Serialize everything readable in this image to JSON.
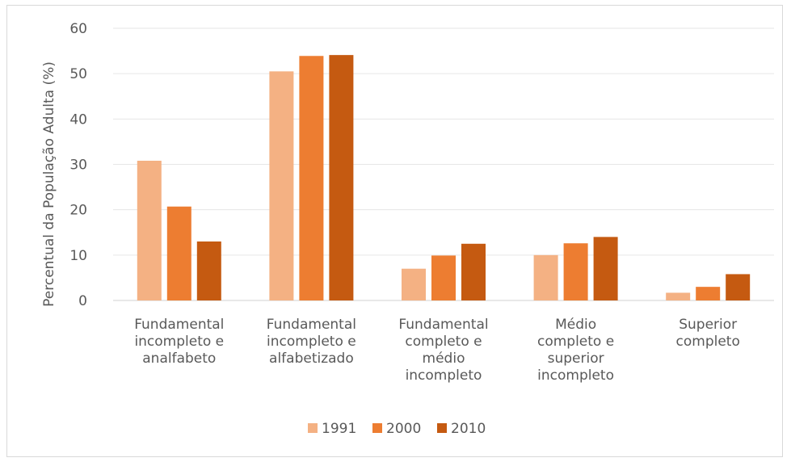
{
  "chart_data": {
    "type": "bar",
    "title": "",
    "xlabel": "",
    "ylabel": "Percentual da População Adulta (%)",
    "ylim": [
      0,
      60
    ],
    "yticks": [
      0,
      10,
      20,
      30,
      40,
      50,
      60
    ],
    "grid": true,
    "legend_position": "bottom",
    "categories": [
      [
        "Fundamental",
        "incompleto e",
        "analfabeto"
      ],
      [
        "Fundamental",
        "incompleto e",
        "alfabetizado"
      ],
      [
        "Fundamental",
        "completo e",
        "médio",
        "incompleto"
      ],
      [
        "Médio",
        "completo e",
        "superior",
        "incompleto"
      ],
      [
        "Superior",
        "completo"
      ]
    ],
    "series": [
      {
        "name": "1991",
        "color": "#f4b183",
        "values": [
          30.8,
          50.5,
          7.0,
          10.0,
          1.7
        ]
      },
      {
        "name": "2000",
        "color": "#ed7d31",
        "values": [
          20.7,
          53.9,
          9.9,
          12.6,
          3.0
        ]
      },
      {
        "name": "2010",
        "color": "#c55a11",
        "values": [
          13.0,
          54.1,
          12.5,
          14.0,
          5.8
        ]
      }
    ]
  }
}
